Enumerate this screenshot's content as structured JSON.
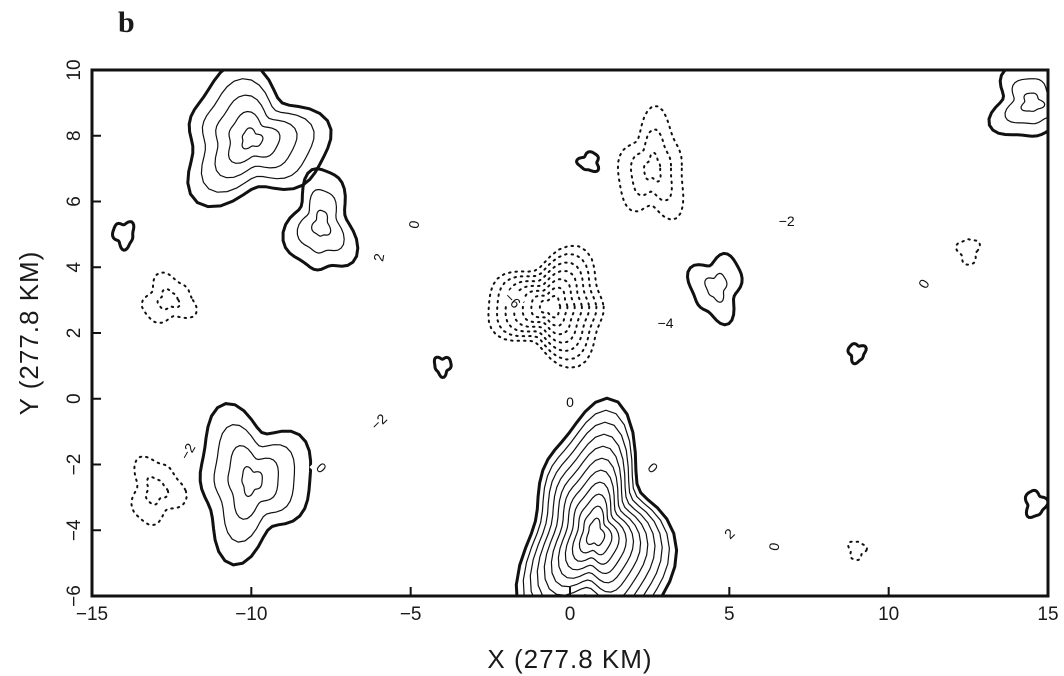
{
  "panel_label": "b",
  "chart_data": {
    "type": "contour",
    "xlabel": "X (277.8 KM)",
    "ylabel": "Y (277.8 KM)",
    "xlim": [
      -15,
      15
    ],
    "ylim": [
      -6,
      10
    ],
    "xticks": [
      -15,
      -10,
      -5,
      0,
      5,
      10,
      15
    ],
    "yticks": [
      -6,
      -4,
      -2,
      0,
      2,
      4,
      6,
      8,
      10
    ],
    "xtick_labels": [
      "−15",
      "−10",
      "−5",
      "0",
      "5",
      "10",
      "15"
    ],
    "ytick_labels": [
      "−6",
      "−4",
      "−2",
      "0",
      "2",
      "4",
      "6",
      "8",
      "10"
    ],
    "contour_interval": 1,
    "line_styles": {
      "positive": "solid",
      "zero": "bold solid",
      "negative": "dotted"
    },
    "features": [
      {
        "kind": "max",
        "x": 0.8,
        "y": -4.1,
        "levels": [
          0,
          1,
          2,
          3,
          4,
          5,
          6,
          7,
          8,
          9,
          10
        ]
      },
      {
        "kind": "max",
        "x": -10.0,
        "y": 7.9,
        "levels": [
          0,
          1,
          2,
          3,
          4
        ]
      },
      {
        "kind": "max",
        "x": -10.0,
        "y": -2.5,
        "levels": [
          0,
          1,
          2,
          3
        ]
      },
      {
        "kind": "max",
        "x": -4.0,
        "y": 1.0,
        "levels": [
          0
        ]
      },
      {
        "kind": "max",
        "x": 4.6,
        "y": 3.4,
        "levels": [
          0,
          1
        ]
      },
      {
        "kind": "max",
        "x": 0.6,
        "y": 7.2,
        "levels": [
          0
        ]
      },
      {
        "kind": "max",
        "x": -7.8,
        "y": 5.3,
        "levels": [
          0,
          1,
          2
        ]
      },
      {
        "kind": "max",
        "x": 14.5,
        "y": 9.0,
        "levels": [
          0,
          1,
          2
        ]
      },
      {
        "kind": "max",
        "x": 14.6,
        "y": -3.2,
        "levels": [
          0
        ]
      },
      {
        "kind": "max",
        "x": 9.0,
        "y": 1.4,
        "levels": [
          0
        ]
      },
      {
        "kind": "max",
        "x": -14.0,
        "y": 5.0,
        "levels": [
          0
        ]
      },
      {
        "kind": "min",
        "x": -0.6,
        "y": 2.8,
        "levels": [
          -1,
          -2,
          -3,
          -4,
          -5,
          -6,
          -7
        ]
      },
      {
        "kind": "min",
        "x": 2.6,
        "y": 7.0,
        "levels": [
          -1,
          -2,
          -3
        ]
      },
      {
        "kind": "min",
        "x": -12.6,
        "y": 3.0,
        "levels": [
          -1,
          -2
        ]
      },
      {
        "kind": "min",
        "x": -13.0,
        "y": -2.8,
        "levels": [
          -1,
          -2
        ]
      },
      {
        "kind": "min",
        "x": 9.0,
        "y": -4.6,
        "levels": [
          -1
        ]
      },
      {
        "kind": "min",
        "x": 12.5,
        "y": 4.5,
        "levels": [
          -1
        ]
      }
    ],
    "contour_labels": [
      {
        "text": "0",
        "x": -4.9,
        "y": 5.3,
        "angle": -80
      },
      {
        "text": "2",
        "x": -6.0,
        "y": 4.3,
        "angle": -80
      },
      {
        "text": "−2",
        "x": 6.8,
        "y": 5.4,
        "angle": 0
      },
      {
        "text": "−6",
        "x": -1.8,
        "y": 3.0,
        "angle": 45
      },
      {
        "text": "−4",
        "x": 3.0,
        "y": 2.3,
        "angle": 0
      },
      {
        "text": "0",
        "x": 11.1,
        "y": 3.5,
        "angle": -60
      },
      {
        "text": "−2",
        "x": -6.0,
        "y": -0.7,
        "angle": -45
      },
      {
        "text": "−2",
        "x": -12.0,
        "y": -1.6,
        "angle": -60
      },
      {
        "text": "0",
        "x": 0.0,
        "y": -0.1,
        "angle": 0
      },
      {
        "text": "0",
        "x": -7.8,
        "y": -2.1,
        "angle": 45
      },
      {
        "text": "0",
        "x": 2.6,
        "y": -2.1,
        "angle": 45
      },
      {
        "text": "2",
        "x": 5.0,
        "y": -4.1,
        "angle": -45
      },
      {
        "text": "0",
        "x": 6.4,
        "y": -4.5,
        "angle": -80
      }
    ]
  }
}
